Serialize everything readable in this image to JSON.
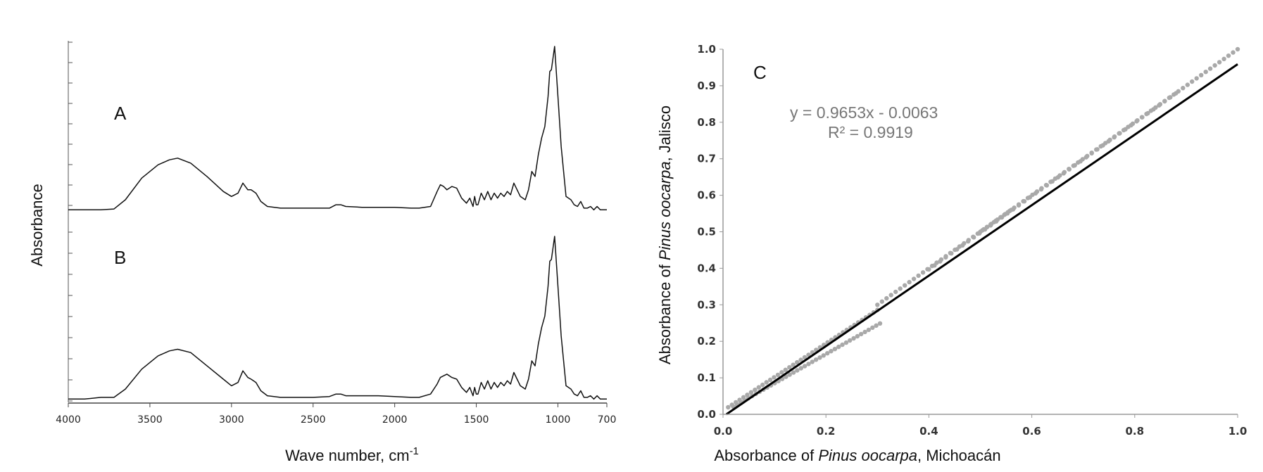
{
  "chart_data": [
    {
      "type": "line",
      "name": "ftir-spectra",
      "xlabel_main": "Wave number, cm",
      "xlabel_sup": "-1",
      "ylabel": "Absorbance",
      "xlim": [
        4000,
        700
      ],
      "x_ticks": [
        {
          "value": 4000,
          "label": "4000"
        },
        {
          "value": 3500,
          "label": "3500"
        },
        {
          "value": 3000,
          "label": "3000"
        },
        {
          "value": 2500,
          "label": "2500"
        },
        {
          "value": 2000,
          "label": "2000"
        },
        {
          "value": 1500,
          "label": "1500"
        },
        {
          "value": 1000,
          "label": "1000"
        },
        {
          "value": 700,
          "label": "700"
        }
      ],
      "ylim": [
        0,
        1
      ],
      "series": [
        {
          "name": "A",
          "label": "A",
          "x": [
            4000,
            3900,
            3800,
            3720,
            3650,
            3550,
            3450,
            3380,
            3330,
            3250,
            3150,
            3050,
            3000,
            2960,
            2930,
            2900,
            2880,
            2850,
            2820,
            2780,
            2700,
            2600,
            2500,
            2400,
            2360,
            2330,
            2300,
            2200,
            2100,
            2000,
            1900,
            1850,
            1780,
            1740,
            1720,
            1700,
            1680,
            1650,
            1620,
            1590,
            1560,
            1540,
            1520,
            1510,
            1500,
            1490,
            1470,
            1450,
            1430,
            1410,
            1390,
            1370,
            1350,
            1330,
            1310,
            1290,
            1270,
            1250,
            1230,
            1200,
            1180,
            1160,
            1140,
            1120,
            1100,
            1080,
            1060,
            1050,
            1040,
            1030,
            1020,
            1000,
            980,
            950,
            920,
            900,
            880,
            860,
            840,
            820,
            800,
            780,
            760,
            740,
            720,
            700
          ],
          "y": [
            0.02,
            0.02,
            0.02,
            0.025,
            0.08,
            0.21,
            0.29,
            0.32,
            0.33,
            0.3,
            0.22,
            0.13,
            0.1,
            0.12,
            0.18,
            0.14,
            0.14,
            0.12,
            0.07,
            0.04,
            0.03,
            0.03,
            0.03,
            0.03,
            0.05,
            0.05,
            0.04,
            0.035,
            0.035,
            0.035,
            0.03,
            0.03,
            0.04,
            0.13,
            0.17,
            0.16,
            0.14,
            0.16,
            0.15,
            0.09,
            0.06,
            0.09,
            0.04,
            0.1,
            0.05,
            0.05,
            0.12,
            0.08,
            0.13,
            0.08,
            0.12,
            0.09,
            0.12,
            0.1,
            0.13,
            0.11,
            0.18,
            0.14,
            0.1,
            0.08,
            0.14,
            0.25,
            0.22,
            0.35,
            0.45,
            0.52,
            0.7,
            0.85,
            0.86,
            0.93,
            1.0,
            0.7,
            0.4,
            0.1,
            0.08,
            0.05,
            0.04,
            0.07,
            0.03,
            0.03,
            0.04,
            0.02,
            0.04,
            0.02,
            0.02,
            0.02
          ]
        },
        {
          "name": "B",
          "label": "B",
          "x": [
            4000,
            3900,
            3800,
            3720,
            3650,
            3550,
            3450,
            3380,
            3330,
            3250,
            3150,
            3050,
            3000,
            2960,
            2930,
            2900,
            2880,
            2850,
            2820,
            2780,
            2700,
            2600,
            2500,
            2400,
            2360,
            2330,
            2300,
            2200,
            2100,
            2000,
            1900,
            1850,
            1780,
            1740,
            1720,
            1700,
            1680,
            1650,
            1620,
            1590,
            1560,
            1540,
            1520,
            1510,
            1500,
            1490,
            1470,
            1450,
            1430,
            1410,
            1390,
            1370,
            1350,
            1330,
            1310,
            1290,
            1270,
            1250,
            1230,
            1200,
            1180,
            1160,
            1140,
            1120,
            1100,
            1080,
            1060,
            1050,
            1040,
            1030,
            1020,
            1000,
            980,
            950,
            920,
            900,
            880,
            860,
            840,
            820,
            800,
            780,
            760,
            740,
            720,
            700
          ],
          "y": [
            0.02,
            0.02,
            0.03,
            0.03,
            0.08,
            0.2,
            0.28,
            0.31,
            0.32,
            0.3,
            0.22,
            0.14,
            0.1,
            0.12,
            0.19,
            0.15,
            0.14,
            0.12,
            0.07,
            0.04,
            0.03,
            0.03,
            0.03,
            0.035,
            0.05,
            0.05,
            0.04,
            0.04,
            0.04,
            0.035,
            0.03,
            0.03,
            0.05,
            0.11,
            0.15,
            0.16,
            0.17,
            0.15,
            0.14,
            0.09,
            0.06,
            0.09,
            0.04,
            0.09,
            0.05,
            0.05,
            0.12,
            0.08,
            0.13,
            0.08,
            0.12,
            0.09,
            0.12,
            0.1,
            0.13,
            0.11,
            0.18,
            0.14,
            0.1,
            0.08,
            0.14,
            0.25,
            0.22,
            0.35,
            0.45,
            0.52,
            0.7,
            0.85,
            0.86,
            0.93,
            1.0,
            0.7,
            0.4,
            0.1,
            0.08,
            0.05,
            0.04,
            0.07,
            0.03,
            0.03,
            0.04,
            0.02,
            0.04,
            0.02,
            0.02,
            0.02
          ]
        }
      ]
    },
    {
      "type": "scatter",
      "name": "correlation",
      "panel_label": "C",
      "xlabel_prefix": "Absorbance of ",
      "xlabel_italic": "Pinus oocarpa",
      "xlabel_suffix": ", Michoacán",
      "ylabel_prefix": "Absorbance of ",
      "ylabel_italic": "Pinus oocarpa",
      "ylabel_suffix": ", Jalisco",
      "xlim": [
        0,
        1
      ],
      "ylim": [
        0,
        1
      ],
      "x_ticks": [
        {
          "value": 0,
          "label": "0.0"
        },
        {
          "value": 0.2,
          "label": "0.2"
        },
        {
          "value": 0.4,
          "label": "0.4"
        },
        {
          "value": 0.6,
          "label": "0.6"
        },
        {
          "value": 0.8,
          "label": "0.8"
        },
        {
          "value": 1.0,
          "label": "1.0"
        }
      ],
      "y_ticks": [
        {
          "value": 0,
          "label": "0.0"
        },
        {
          "value": 0.1,
          "label": "0.1"
        },
        {
          "value": 0.2,
          "label": "0.2"
        },
        {
          "value": 0.3,
          "label": "0.3"
        },
        {
          "value": 0.4,
          "label": "0.4"
        },
        {
          "value": 0.5,
          "label": "0.5"
        },
        {
          "value": 0.6,
          "label": "0.6"
        },
        {
          "value": 0.7,
          "label": "0.7"
        },
        {
          "value": 0.8,
          "label": "0.8"
        },
        {
          "value": 0.9,
          "label": "0.9"
        },
        {
          "value": 1.0,
          "label": "1.0"
        }
      ],
      "equation": "y = 0.9653x - 0.0063",
      "r_squared": "R² = 0.9919",
      "trendline": {
        "slope": 0.9653,
        "intercept": -0.0063,
        "x_range": [
          0.0065,
          1.0
        ]
      },
      "point_color": "#a9a9a9",
      "line_color": "#000000",
      "series": [
        {
          "name": "cluster-upper",
          "x_range": [
            0.01,
            0.3
          ],
          "slope": 0.92,
          "intercept": 0.01,
          "count": 40
        },
        {
          "name": "cluster-lower",
          "x_range": [
            0.02,
            0.305
          ],
          "slope": 0.8,
          "intercept": 0.005,
          "count": 40
        },
        {
          "name": "ridge-upper",
          "x_range": [
            0.3,
            1.0
          ],
          "slope": 1.0,
          "intercept": 0.0,
          "count": 80
        },
        {
          "name": "ridge-lower",
          "x_range": [
            0.4,
            0.88
          ],
          "slope": 1.005,
          "intercept": -0.005,
          "count": 45
        },
        {
          "name": "shoulder",
          "x_range": [
            0.5,
            0.56
          ],
          "slope": 1.0,
          "intercept": 0.0,
          "count": 10
        }
      ]
    }
  ]
}
